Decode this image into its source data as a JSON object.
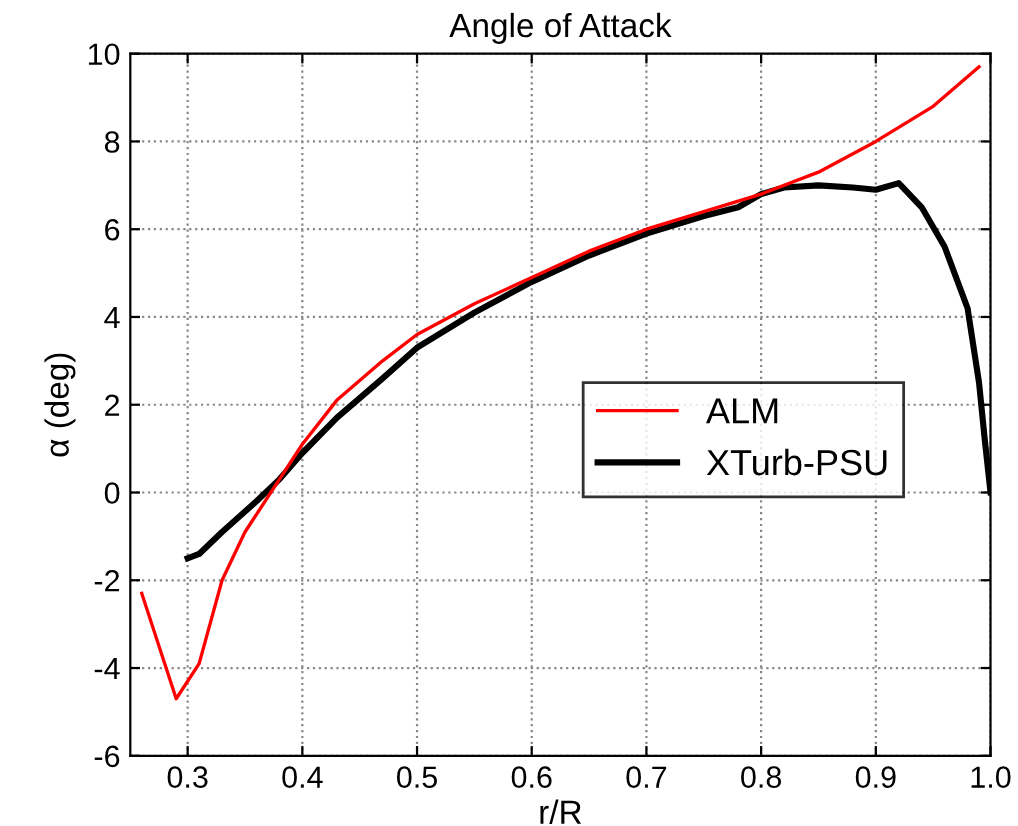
{
  "chart_data": {
    "type": "line",
    "title": "Angle of Attack",
    "xlabel": "r/R",
    "ylabel": "α (deg)",
    "xlim": [
      0.25,
      1.0
    ],
    "xticks": [
      0.3,
      0.4,
      0.5,
      0.6,
      0.7,
      0.8,
      0.9,
      {
        "value": 1.0,
        "label": "1.0"
      }
    ],
    "ylim": [
      -6,
      10
    ],
    "yticks": [
      -6,
      -4,
      -2,
      0,
      2,
      4,
      6,
      8,
      10
    ],
    "grid": true,
    "legend": "right",
    "line_style": "solid",
    "series": [
      {
        "name": "ALM",
        "color": "#ff0000",
        "x": [
          0.26,
          0.29,
          0.31,
          0.33,
          0.35,
          0.38,
          0.4,
          0.43,
          0.47,
          0.5,
          0.55,
          0.6,
          0.65,
          0.7,
          0.75,
          0.8,
          0.85,
          0.9,
          0.95,
          0.99
        ],
        "values": [
          -2.3,
          -4.7,
          -3.9,
          -2.0,
          -0.9,
          0.3,
          1.1,
          2.1,
          3.0,
          3.6,
          4.3,
          4.9,
          5.5,
          6.0,
          6.4,
          6.8,
          7.3,
          8.0,
          8.8,
          9.7
        ]
      },
      {
        "name": "XTurb-PSU",
        "color": "#000000",
        "x": [
          0.3,
          0.31,
          0.33,
          0.36,
          0.38,
          0.4,
          0.43,
          0.47,
          0.5,
          0.55,
          0.6,
          0.65,
          0.7,
          0.75,
          0.78,
          0.8,
          0.82,
          0.85,
          0.88,
          0.9,
          0.92,
          0.94,
          0.96,
          0.98,
          0.99,
          0.995,
          1.0
        ],
        "values": [
          -1.5,
          -1.4,
          -0.9,
          -0.2,
          0.3,
          0.9,
          1.7,
          2.6,
          3.3,
          4.1,
          4.8,
          5.4,
          5.9,
          6.3,
          6.5,
          6.8,
          6.95,
          7.0,
          6.95,
          6.9,
          7.05,
          6.5,
          5.6,
          4.2,
          2.5,
          1.2,
          0
        ]
      }
    ]
  }
}
